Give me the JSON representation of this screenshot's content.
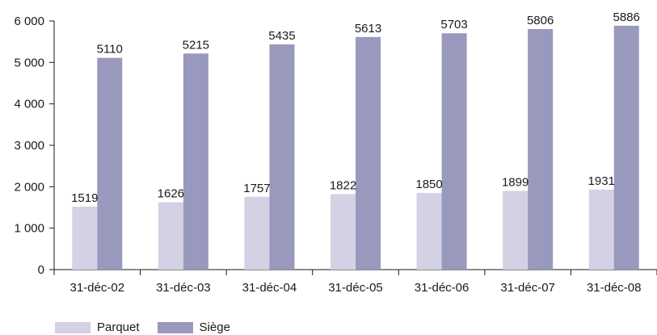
{
  "chart_data": {
    "type": "bar",
    "categories": [
      "31-déc-02",
      "31-déc-03",
      "31-déc-04",
      "31-déc-05",
      "31-déc-06",
      "31-déc-07",
      "31-déc-08"
    ],
    "series": [
      {
        "name": "Parquet",
        "color": "#d3d1e3",
        "values": [
          1519,
          1626,
          1757,
          1822,
          1850,
          1899,
          1931
        ]
      },
      {
        "name": "Siège",
        "color": "#9998bd",
        "values": [
          5110,
          5215,
          5435,
          5613,
          5703,
          5806,
          5886
        ]
      }
    ],
    "ylim": [
      0,
      6000
    ],
    "yticks": [
      0,
      1000,
      2000,
      3000,
      4000,
      5000,
      6000
    ],
    "ytick_labels": [
      "0",
      "1 000",
      "2 000",
      "3 000",
      "4 000",
      "5 000",
      "6 000"
    ],
    "grid": false,
    "legend_position": "bottom-left"
  }
}
